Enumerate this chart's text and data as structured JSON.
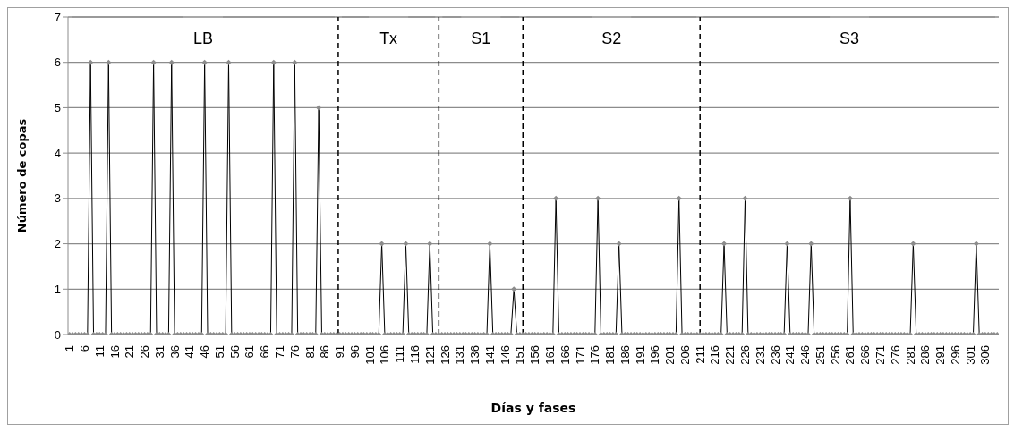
{
  "chart_data": {
    "type": "line",
    "xlabel": "Días y fases",
    "ylabel": "Número de copas",
    "x": [
      1,
      2,
      3,
      4,
      5,
      6,
      7,
      8,
      9,
      10,
      11,
      12,
      13,
      14,
      15,
      16,
      17,
      18,
      19,
      20,
      21,
      22,
      23,
      24,
      25,
      26,
      27,
      28,
      29,
      30,
      31,
      32,
      33,
      34,
      35,
      36,
      37,
      38,
      39,
      40,
      41,
      42,
      43,
      44,
      45,
      46,
      47,
      48,
      49,
      50,
      51,
      52,
      53,
      54,
      55,
      56,
      57,
      58,
      59,
      60,
      61,
      62,
      63,
      64,
      65,
      66,
      67,
      68,
      69,
      70,
      71,
      72,
      73,
      74,
      75,
      76,
      77,
      78,
      79,
      80,
      81,
      82,
      83,
      84,
      85,
      86,
      87,
      88,
      89,
      90,
      91,
      92,
      93,
      94,
      95,
      96,
      97,
      98,
      99,
      100,
      101,
      102,
      103,
      104,
      105,
      106,
      107,
      108,
      109,
      110,
      111,
      112,
      113,
      114,
      115,
      116,
      117,
      118,
      119,
      120,
      121,
      122,
      123,
      124,
      125,
      126,
      127,
      128,
      129,
      130,
      131,
      132,
      133,
      134,
      135,
      136,
      137,
      138,
      139,
      140,
      141,
      142,
      143,
      144,
      145,
      146,
      147,
      148,
      149,
      150,
      151,
      152,
      153,
      154,
      155,
      156,
      157,
      158,
      159,
      160,
      161,
      162,
      163,
      164,
      165,
      166,
      167,
      168,
      169,
      170,
      171,
      172,
      173,
      174,
      175,
      176,
      177,
      178,
      179,
      180,
      181,
      182,
      183,
      184,
      185,
      186,
      187,
      188,
      189,
      190,
      191,
      192,
      193,
      194,
      195,
      196,
      197,
      198,
      199,
      200,
      201,
      202,
      203,
      204,
      205,
      206,
      207,
      208,
      209,
      210,
      211,
      212,
      213,
      214,
      215,
      216,
      217,
      218,
      219,
      220,
      221,
      222,
      223,
      224,
      225,
      226,
      227,
      228,
      229,
      230,
      231,
      232,
      233,
      234,
      235,
      236,
      237,
      238,
      239,
      240,
      241,
      242,
      243,
      244,
      245,
      246,
      247,
      248,
      249,
      250,
      251,
      252,
      253,
      254,
      255,
      256,
      257,
      258,
      259,
      260,
      261,
      262,
      263,
      264,
      265,
      266,
      267,
      268,
      269,
      270,
      271,
      272,
      273,
      274,
      275,
      276,
      277,
      278,
      279,
      280,
      281,
      282,
      283,
      284,
      285,
      286,
      287,
      288,
      289,
      290,
      291,
      292,
      293,
      294,
      295,
      296,
      297,
      298,
      299,
      300,
      301,
      302,
      303,
      304,
      305,
      306,
      307,
      308,
      309,
      310
    ],
    "series": [
      {
        "color": "#000000",
        "values": [
          0,
          0,
          0,
          0,
          0,
          0,
          0,
          6,
          0,
          0,
          0,
          0,
          0,
          6,
          0,
          0,
          0,
          0,
          0,
          0,
          0,
          0,
          0,
          0,
          0,
          0,
          0,
          0,
          6,
          0,
          0,
          0,
          0,
          0,
          6,
          0,
          0,
          0,
          0,
          0,
          0,
          0,
          0,
          0,
          0,
          6,
          0,
          0,
          0,
          0,
          0,
          0,
          0,
          6,
          0,
          0,
          0,
          0,
          0,
          0,
          0,
          0,
          0,
          0,
          0,
          0,
          0,
          0,
          6,
          0,
          0,
          0,
          0,
          0,
          0,
          6,
          0,
          0,
          0,
          0,
          0,
          0,
          0,
          5,
          0,
          0,
          0,
          0,
          0,
          0,
          0,
          0,
          0,
          0,
          0,
          0,
          0,
          0,
          0,
          0,
          0,
          0,
          0,
          0,
          2,
          0,
          0,
          0,
          0,
          0,
          0,
          0,
          2,
          0,
          0,
          0,
          0,
          0,
          0,
          0,
          2,
          0,
          0,
          0,
          0,
          0,
          0,
          0,
          0,
          0,
          0,
          0,
          0,
          0,
          0,
          0,
          0,
          0,
          0,
          0,
          2,
          0,
          0,
          0,
          0,
          0,
          0,
          0,
          1,
          0,
          0,
          0,
          0,
          0,
          0,
          0,
          0,
          0,
          0,
          0,
          0,
          0,
          3,
          0,
          0,
          0,
          0,
          0,
          0,
          0,
          0,
          0,
          0,
          0,
          0,
          0,
          3,
          0,
          0,
          0,
          0,
          0,
          0,
          2,
          0,
          0,
          0,
          0,
          0,
          0,
          0,
          0,
          0,
          0,
          0,
          0,
          0,
          0,
          0,
          0,
          0,
          0,
          0,
          3,
          0,
          0,
          0,
          0,
          0,
          0,
          0,
          0,
          0,
          0,
          0,
          0,
          0,
          0,
          2,
          0,
          0,
          0,
          0,
          0,
          0,
          3,
          0,
          0,
          0,
          0,
          0,
          0,
          0,
          0,
          0,
          0,
          0,
          0,
          0,
          2,
          0,
          0,
          0,
          0,
          0,
          0,
          0,
          2,
          0,
          0,
          0,
          0,
          0,
          0,
          0,
          0,
          0,
          0,
          0,
          0,
          3,
          0,
          0,
          0,
          0,
          0,
          0,
          0,
          0,
          0,
          0,
          0,
          0,
          0,
          0,
          0,
          0,
          0,
          0,
          0,
          0,
          2,
          0,
          0,
          0,
          0,
          0,
          0,
          0,
          0,
          0,
          0,
          0,
          0,
          0,
          0,
          0,
          0,
          0,
          0,
          0,
          0,
          2,
          0,
          0,
          0,
          0,
          0,
          0,
          0
        ]
      }
    ],
    "xlim": [
      0.5,
      310.5
    ],
    "xticks": [
      1,
      6,
      11,
      16,
      21,
      26,
      31,
      36,
      41,
      46,
      51,
      56,
      61,
      66,
      71,
      76,
      81,
      86,
      91,
      96,
      101,
      106,
      111,
      116,
      121,
      126,
      131,
      136,
      141,
      146,
      151,
      156,
      161,
      166,
      171,
      176,
      181,
      186,
      191,
      196,
      201,
      206,
      211,
      216,
      221,
      226,
      231,
      236,
      241,
      246,
      251,
      256,
      261,
      266,
      271,
      276,
      281,
      286,
      291,
      296,
      301,
      306
    ],
    "ylim": [
      0,
      7
    ],
    "yticks": [
      0,
      1,
      2,
      3,
      4,
      5,
      6,
      7
    ],
    "grid": "y",
    "marker": "diamond",
    "line_style": "solid",
    "ref_lines": [
      {
        "axis": "x",
        "value": 90.5,
        "line_style": "dashed",
        "color": "#000000"
      },
      {
        "axis": "x",
        "value": 124,
        "line_style": "dashed",
        "color": "#000000"
      },
      {
        "axis": "x",
        "value": 152,
        "line_style": "dashed",
        "color": "#000000"
      },
      {
        "axis": "x",
        "value": 211,
        "line_style": "dashed",
        "color": "#000000"
      }
    ],
    "annotations": [
      "LB",
      "Tx",
      "S1",
      "S2",
      "S3"
    ]
  }
}
